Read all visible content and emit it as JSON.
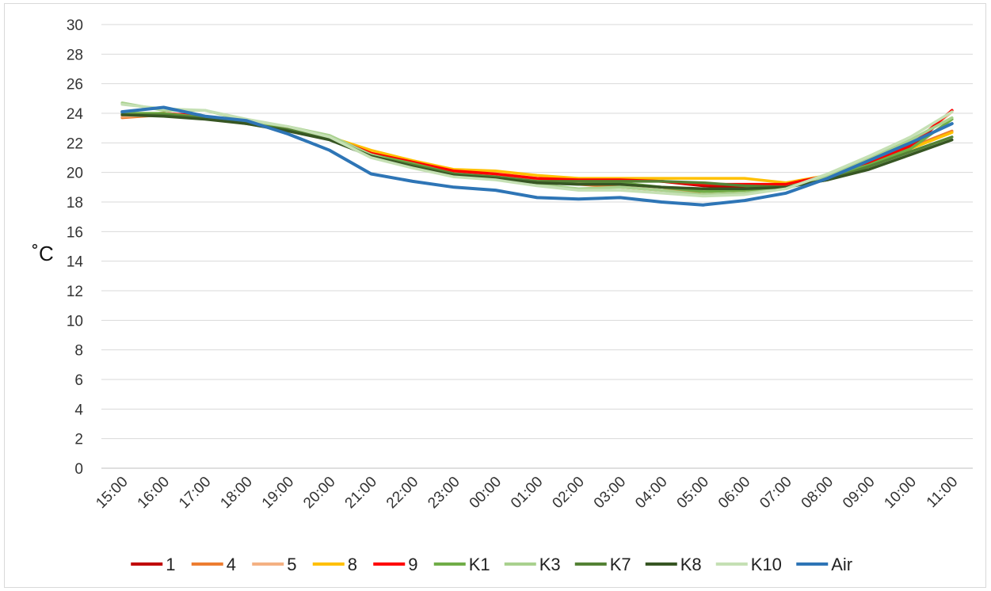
{
  "chart_data": {
    "type": "line",
    "title": "",
    "xlabel": "",
    "ylabel": "˚C",
    "ylim": [
      0,
      30
    ],
    "ytick_step": 2,
    "grid": true,
    "legend_position": "bottom",
    "categories": [
      "15:00",
      "16:00",
      "17:00",
      "18:00",
      "19:00",
      "20:00",
      "21:00",
      "22:00",
      "23:00",
      "00:00",
      "01:00",
      "02:00",
      "03:00",
      "04:00",
      "05:00",
      "06:00",
      "07:00",
      "08:00",
      "09:00",
      "10:00",
      "11:00"
    ],
    "series": [
      {
        "name": "1",
        "color": "#c00000",
        "values": [
          23.9,
          24.0,
          23.8,
          23.4,
          22.9,
          22.3,
          21.2,
          20.6,
          20.0,
          19.8,
          19.5,
          19.5,
          19.5,
          19.4,
          19.1,
          19.0,
          19.1,
          19.7,
          20.5,
          21.6,
          24.2
        ]
      },
      {
        "name": "4",
        "color": "#ed7d31",
        "values": [
          23.7,
          23.9,
          23.7,
          23.4,
          22.9,
          22.4,
          21.3,
          20.6,
          20.0,
          19.8,
          19.4,
          19.2,
          19.0,
          18.8,
          18.7,
          18.8,
          19.0,
          19.7,
          20.7,
          21.7,
          22.8
        ]
      },
      {
        "name": "5",
        "color": "#f4b183",
        "values": [
          23.8,
          23.9,
          23.8,
          23.5,
          23.0,
          22.4,
          21.3,
          20.6,
          20.0,
          19.8,
          19.5,
          19.3,
          19.2,
          19.0,
          18.8,
          18.9,
          19.1,
          19.8,
          20.8,
          21.9,
          24.1
        ]
      },
      {
        "name": "8",
        "color": "#ffc000",
        "values": [
          23.9,
          24.0,
          23.7,
          23.4,
          22.9,
          22.4,
          21.5,
          20.8,
          20.2,
          20.1,
          19.8,
          19.6,
          19.6,
          19.6,
          19.6,
          19.6,
          19.3,
          19.8,
          20.7,
          21.6,
          22.7
        ]
      },
      {
        "name": "9",
        "color": "#ff0000",
        "values": [
          23.9,
          24.0,
          23.8,
          23.4,
          23.0,
          22.4,
          21.3,
          20.7,
          20.1,
          19.9,
          19.6,
          19.5,
          19.5,
          19.4,
          19.2,
          19.2,
          19.2,
          19.8,
          20.6,
          21.8,
          24.2
        ]
      },
      {
        "name": "K1",
        "color": "#70ad47",
        "values": [
          24.0,
          24.0,
          23.7,
          23.4,
          22.9,
          22.3,
          21.2,
          20.6,
          19.9,
          19.7,
          19.3,
          19.2,
          19.3,
          19.0,
          18.7,
          18.8,
          19.0,
          19.7,
          20.5,
          21.6,
          23.6
        ]
      },
      {
        "name": "K3",
        "color": "#a9d18e",
        "values": [
          24.7,
          24.2,
          24.2,
          23.5,
          23.1,
          22.5,
          21.2,
          20.4,
          19.8,
          19.6,
          19.2,
          18.9,
          19.0,
          18.8,
          18.5,
          18.6,
          18.9,
          19.8,
          20.9,
          22.2,
          23.7
        ]
      },
      {
        "name": "K7",
        "color": "#548235",
        "values": [
          23.9,
          23.9,
          23.7,
          23.3,
          22.9,
          22.3,
          21.1,
          20.5,
          19.9,
          19.7,
          19.4,
          19.4,
          19.4,
          19.4,
          19.3,
          19.1,
          19.0,
          19.5,
          20.4,
          21.4,
          22.4
        ]
      },
      {
        "name": "K8",
        "color": "#375623",
        "values": [
          23.9,
          23.8,
          23.6,
          23.3,
          22.8,
          22.2,
          21.1,
          20.4,
          19.8,
          19.6,
          19.3,
          19.2,
          19.2,
          19.0,
          18.9,
          18.9,
          19.0,
          19.5,
          20.2,
          21.2,
          22.2
        ]
      },
      {
        "name": "K10",
        "color": "#c5e0b4",
        "values": [
          24.6,
          24.3,
          24.2,
          23.6,
          23.1,
          22.4,
          21.0,
          20.3,
          19.7,
          19.5,
          19.1,
          18.8,
          18.8,
          18.6,
          18.4,
          18.5,
          18.9,
          19.9,
          21.1,
          22.4,
          24.1
        ]
      },
      {
        "name": "Air",
        "color": "#2e75b6",
        "values": [
          24.1,
          24.4,
          23.8,
          23.5,
          22.6,
          21.5,
          19.9,
          19.4,
          19.0,
          18.8,
          18.3,
          18.2,
          18.3,
          18.0,
          17.8,
          18.1,
          18.6,
          19.6,
          20.8,
          22.0,
          23.3
        ]
      }
    ]
  }
}
